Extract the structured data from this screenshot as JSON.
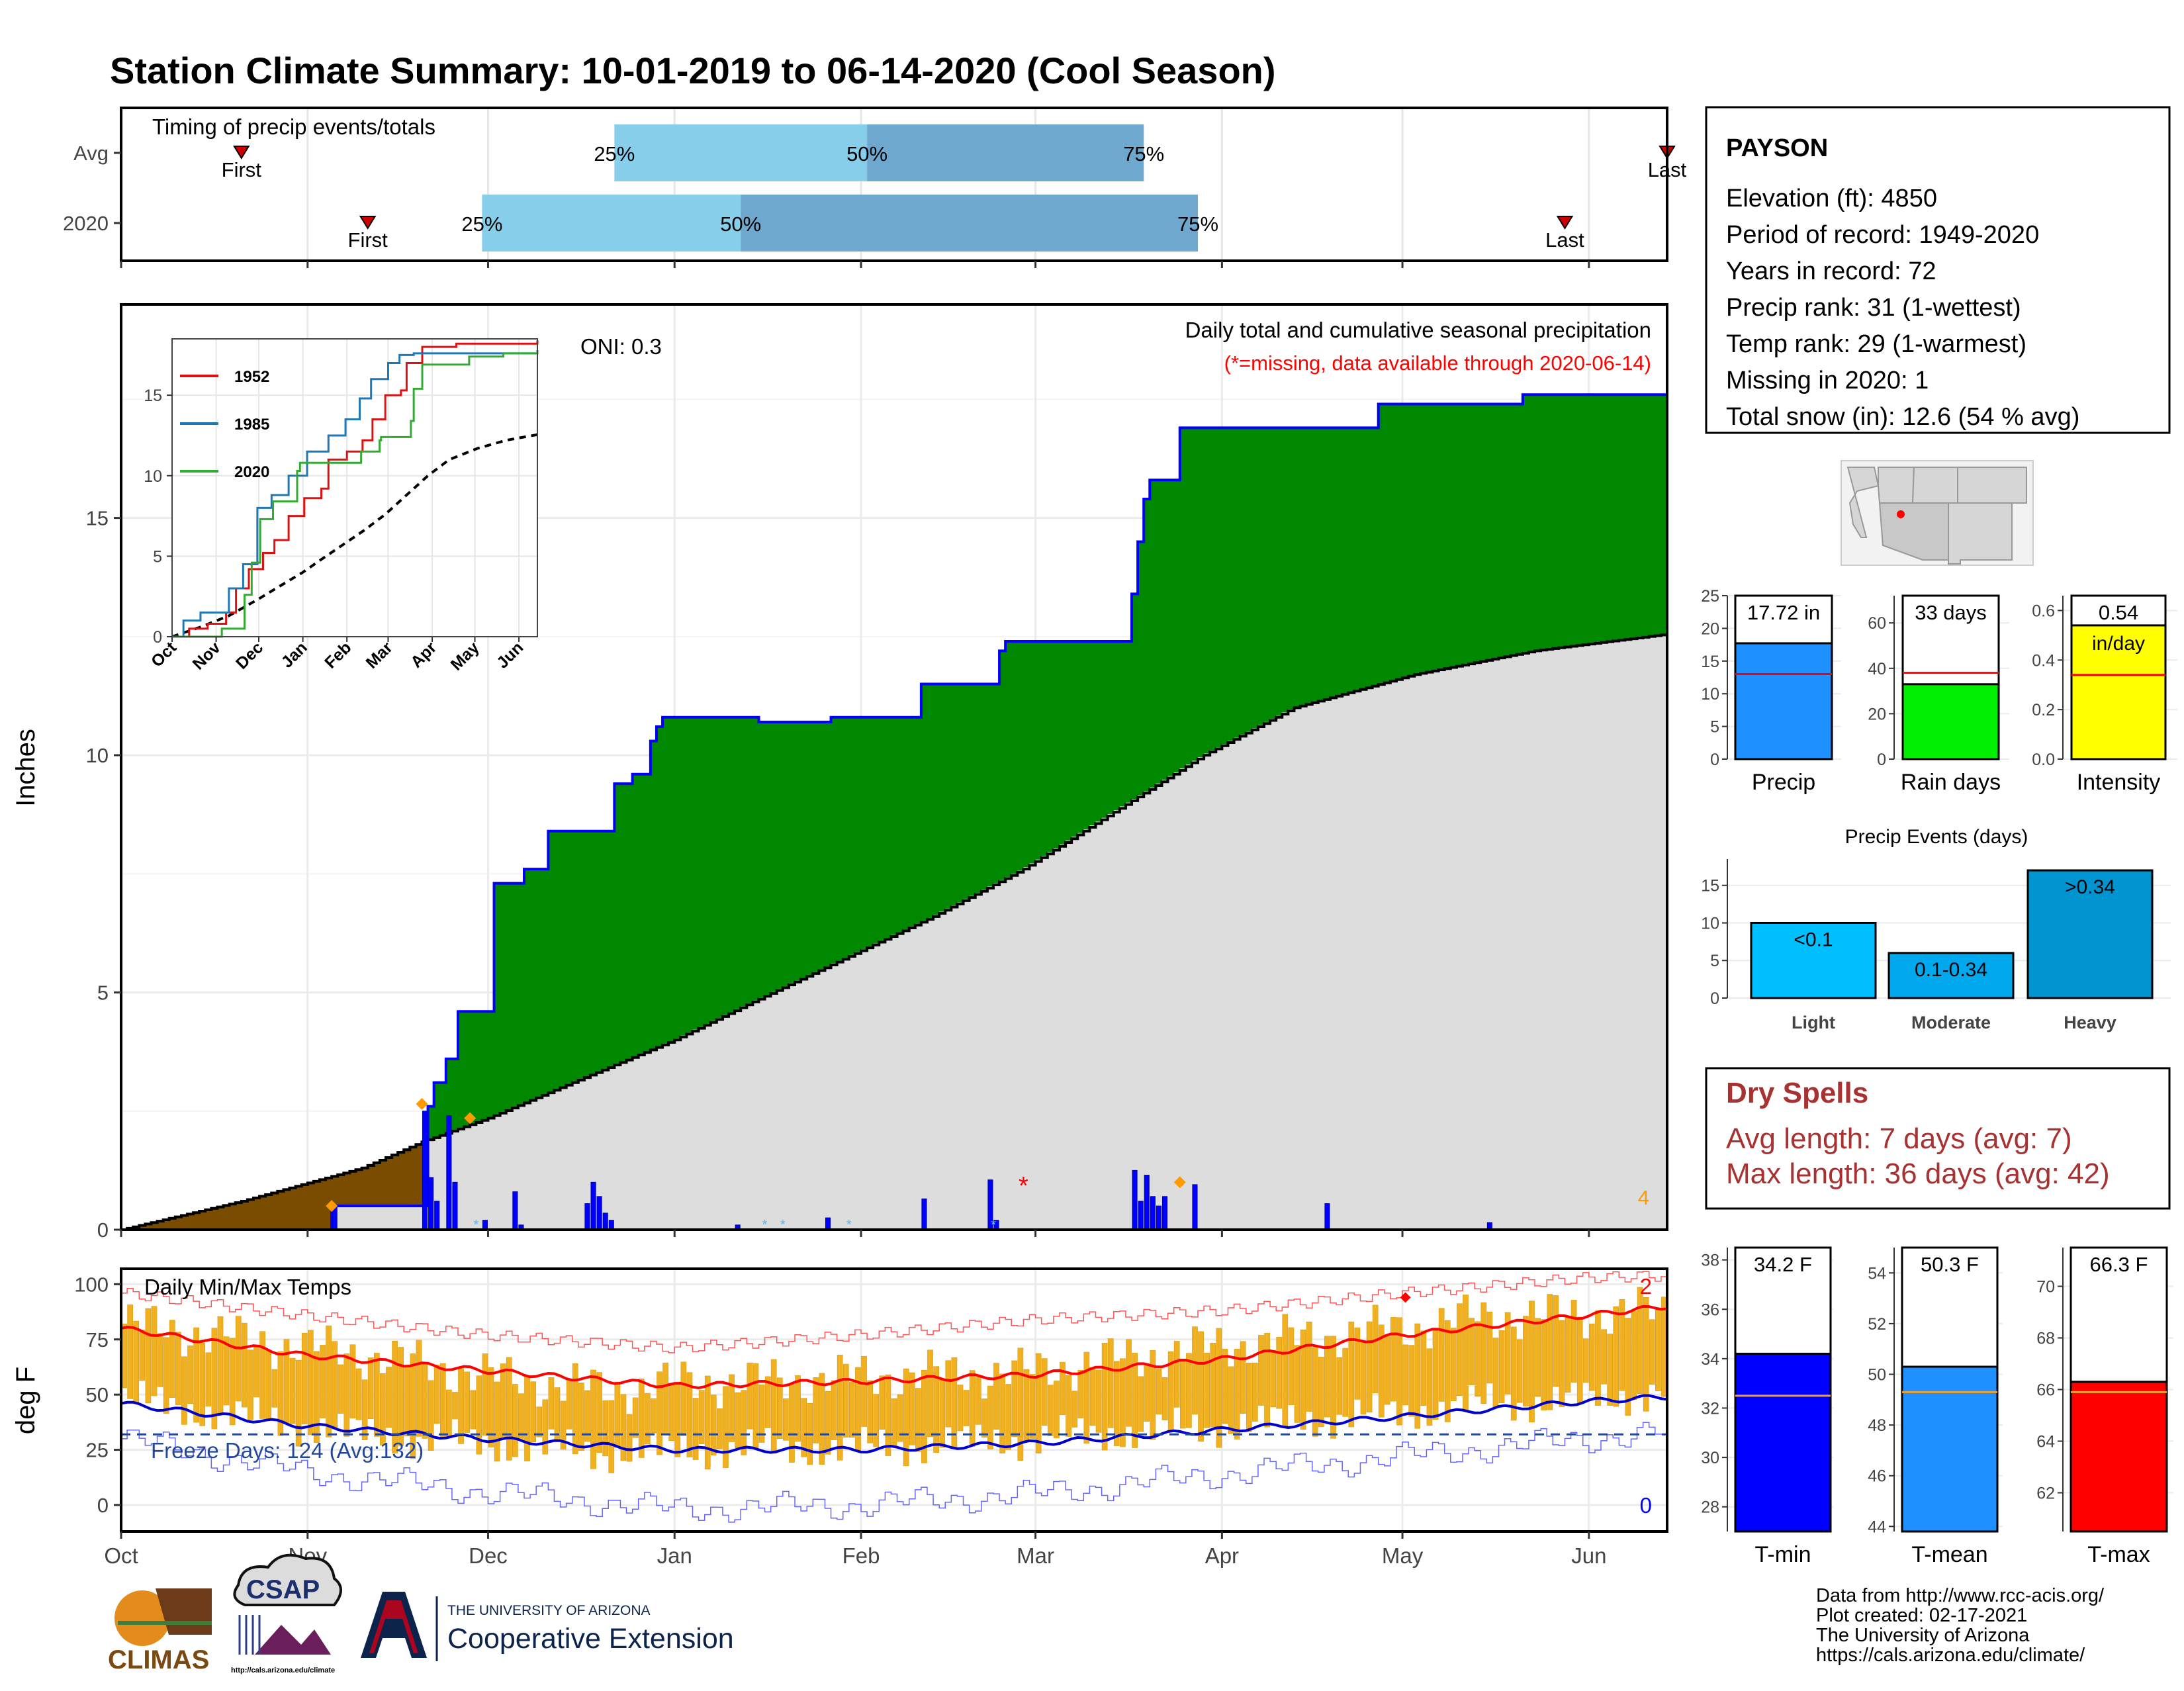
{
  "title": "Station Climate Summary: 10-01-2019 to 06-14-2020 (Cool Season)",
  "timing_panel": {
    "label": "Timing of precip events/totals",
    "rows": [
      {
        "name": "Avg",
        "first_label": "First",
        "last_label": "Last",
        "first_day": 20,
        "last_day": 257,
        "q25_day": 82,
        "q50_day": 124,
        "q75_day": 170,
        "q25_label": "25%",
        "q50_label": "50%",
        "q75_label": "75%"
      },
      {
        "name": "2020",
        "first_label": "First",
        "last_label": "Last",
        "first_day": 41,
        "last_day": 240,
        "q25_day": 60,
        "q50_day": 103,
        "q75_day": 179,
        "q25_label": "25%",
        "q50_label": "50%",
        "q75_label": "75%"
      }
    ]
  },
  "station": {
    "name": "PAYSON",
    "lines": [
      "Elevation (ft): 4850",
      "Period of record: 1949-2020",
      "Years in record: 72",
      "Precip rank: 31 (1-wettest)",
      "Temp rank: 29 (1-warmest)",
      "Missing in 2020: 1",
      "Total snow (in): 12.6 (54 % avg)"
    ]
  },
  "dry_spells": {
    "title": "Dry Spells",
    "lines": [
      "Avg length: 7 days (avg: 7)",
      "Max length: 36 days (avg: 42)"
    ]
  },
  "credits": [
    "Data from http://www.rcc-acis.org/",
    "Plot created: 02-17-2021",
    "The University of Arizona",
    "https://cals.arizona.edu/climate/"
  ],
  "logos": {
    "climas": "CLIMAS",
    "csap": "CSAP",
    "csap_url": "http://cals.arizona.edu/climate",
    "ua_line1": "THE UNIVERSITY OF ARIZONA",
    "ua_line2": "Cooperative Extension"
  },
  "colors": {
    "title": "#2b3f87",
    "green": "#008800",
    "brown": "#7a4c00",
    "gray": "#dddddd",
    "blue": "#0000ff",
    "orange": "#f0b020",
    "red": "#ff0000",
    "dry_red": "#a83232"
  },
  "chart_data": [
    {
      "id": "precip",
      "type": "area",
      "title": "Daily total and cumulative seasonal precipitation",
      "subtitle": "(*=missing, data available through 2020-06-14)",
      "oni_label": "ONI: 0.3",
      "ylabel": "Inches",
      "ylim": [
        0,
        19.5
      ],
      "yticks": [
        0,
        5,
        10,
        15
      ],
      "xlabels": [
        "Oct",
        "Nov",
        "Dec",
        "Jan",
        "Feb",
        "Mar",
        "Apr",
        "May",
        "Jun"
      ],
      "corner_label": "4",
      "observed_cumulative": [
        [
          0,
          0
        ],
        [
          35,
          0.5
        ],
        [
          50,
          0.5
        ],
        [
          51,
          2.6
        ],
        [
          52,
          3.1
        ],
        [
          54,
          3.6
        ],
        [
          56,
          4.6
        ],
        [
          61,
          4.6
        ],
        [
          62,
          7.3
        ],
        [
          66,
          7.3
        ],
        [
          67,
          7.6
        ],
        [
          70,
          7.6
        ],
        [
          71,
          8.4
        ],
        [
          75,
          8.4
        ],
        [
          81,
          8.4
        ],
        [
          82,
          9.4
        ],
        [
          85,
          9.6
        ],
        [
          88,
          10.3
        ],
        [
          89,
          10.6
        ],
        [
          90,
          10.8
        ],
        [
          100,
          10.8
        ],
        [
          105,
          10.8
        ],
        [
          106,
          10.7
        ],
        [
          117,
          10.7
        ],
        [
          118,
          10.8
        ],
        [
          132,
          10.8
        ],
        [
          133,
          11.5
        ],
        [
          145,
          11.5
        ],
        [
          146,
          12.2
        ],
        [
          147,
          12.4
        ],
        [
          167,
          12.4
        ],
        [
          168,
          13.4
        ],
        [
          169,
          14.5
        ],
        [
          170,
          15.4
        ],
        [
          171,
          15.8
        ],
        [
          175,
          15.8
        ],
        [
          176,
          16.9
        ],
        [
          196,
          16.9
        ],
        [
          208,
          16.9
        ],
        [
          209,
          17.4
        ],
        [
          232,
          17.4
        ],
        [
          233,
          17.6
        ],
        [
          256,
          17.6
        ],
        [
          257,
          17.72
        ]
      ],
      "avg_cumulative": [
        [
          0,
          0
        ],
        [
          20,
          0.6
        ],
        [
          40,
          1.3
        ],
        [
          50,
          1.85
        ],
        [
          61,
          2.35
        ],
        [
          75,
          3.1
        ],
        [
          92,
          4.0
        ],
        [
          105,
          4.8
        ],
        [
          120,
          5.7
        ],
        [
          135,
          6.6
        ],
        [
          150,
          7.6
        ],
        [
          165,
          8.8
        ],
        [
          180,
          10.0
        ],
        [
          195,
          11.0
        ],
        [
          215,
          11.7
        ],
        [
          235,
          12.2
        ],
        [
          257,
          12.55
        ]
      ],
      "daily_bars": [
        [
          35,
          0.5
        ],
        [
          50,
          2.5
        ],
        [
          51,
          1.1
        ],
        [
          52,
          0.6
        ],
        [
          54,
          2.4
        ],
        [
          55,
          1.0
        ],
        [
          60,
          0.2
        ],
        [
          65,
          0.8
        ],
        [
          66,
          0.1
        ],
        [
          77,
          0.55
        ],
        [
          78,
          1.0
        ],
        [
          79,
          0.7
        ],
        [
          80,
          0.35
        ],
        [
          81,
          0.2
        ],
        [
          102,
          0.1
        ],
        [
          117,
          0.25
        ],
        [
          133,
          0.65
        ],
        [
          144,
          1.05
        ],
        [
          145,
          0.2
        ],
        [
          168,
          1.25
        ],
        [
          169,
          0.6
        ],
        [
          170,
          1.15
        ],
        [
          171,
          0.7
        ],
        [
          172,
          0.5
        ],
        [
          173,
          0.7
        ],
        [
          178,
          0.95
        ],
        [
          200,
          0.55
        ],
        [
          227,
          0.15
        ]
      ],
      "diamonds": [
        [
          35,
          0.5
        ],
        [
          50,
          2.65
        ],
        [
          58,
          2.35
        ],
        [
          176,
          1.0
        ]
      ],
      "missing_marks": [
        [
          150,
          0.95
        ]
      ]
    },
    {
      "id": "inset",
      "type": "line",
      "xlabels": [
        "Oct",
        "Nov",
        "Dec",
        "Jan",
        "Feb",
        "Mar",
        "Apr",
        "May",
        "Jun"
      ],
      "ylim": [
        0,
        18.5
      ],
      "yticks": [
        0,
        5,
        10,
        15
      ],
      "series": [
        {
          "name": "1952",
          "color": "#dd1111",
          "points": [
            [
              0,
              0
            ],
            [
              12,
              0.5
            ],
            [
              25,
              0.8
            ],
            [
              38,
              1.5
            ],
            [
              45,
              3.0
            ],
            [
              54,
              4.2
            ],
            [
              64,
              5.2
            ],
            [
              72,
              6.0
            ],
            [
              82,
              7.5
            ],
            [
              93,
              8.6
            ],
            [
              105,
              9.2
            ],
            [
              110,
              11.0
            ],
            [
              123,
              11.5
            ],
            [
              134,
              12.2
            ],
            [
              141,
              13.5
            ],
            [
              150,
              15.0
            ],
            [
              161,
              15.3
            ],
            [
              165,
              17.0
            ],
            [
              176,
              18.0
            ],
            [
              200,
              18.2
            ],
            [
              257,
              18.4
            ]
          ]
        },
        {
          "name": "1985",
          "color": "#1f77b4",
          "points": [
            [
              0,
              0
            ],
            [
              8,
              1.0
            ],
            [
              20,
              1.5
            ],
            [
              40,
              3.0
            ],
            [
              50,
              4.5
            ],
            [
              60,
              8.0
            ],
            [
              70,
              8.8
            ],
            [
              82,
              10.0
            ],
            [
              95,
              11.5
            ],
            [
              110,
              12.5
            ],
            [
              122,
              13.5
            ],
            [
              132,
              14.8
            ],
            [
              140,
              16.0
            ],
            [
              152,
              17.0
            ],
            [
              160,
              17.5
            ],
            [
              170,
              17.6
            ],
            [
              190,
              17.6
            ],
            [
              257,
              17.8
            ]
          ]
        },
        {
          "name": "2020",
          "color": "#33aa33",
          "points": [
            [
              0,
              0
            ],
            [
              35,
              0.5
            ],
            [
              51,
              2.6
            ],
            [
              56,
              4.6
            ],
            [
              62,
              7.3
            ],
            [
              71,
              8.4
            ],
            [
              88,
              10.3
            ],
            [
              90,
              10.8
            ],
            [
              132,
              10.8
            ],
            [
              133,
              11.5
            ],
            [
              146,
              12.2
            ],
            [
              147,
              12.4
            ],
            [
              168,
              13.4
            ],
            [
              170,
              15.4
            ],
            [
              176,
              16.9
            ],
            [
              208,
              16.9
            ],
            [
              209,
              17.4
            ],
            [
              233,
              17.6
            ],
            [
              257,
              17.72
            ]
          ]
        }
      ],
      "avg_series": {
        "color": "#000000",
        "points": [
          [
            0,
            0
          ],
          [
            20,
            0.6
          ],
          [
            40,
            1.3
          ],
          [
            61,
            2.35
          ],
          [
            75,
            3.1
          ],
          [
            92,
            4.0
          ],
          [
            105,
            4.8
          ],
          [
            120,
            5.7
          ],
          [
            135,
            6.6
          ],
          [
            150,
            7.6
          ],
          [
            165,
            8.8
          ],
          [
            180,
            10.0
          ],
          [
            195,
            11.0
          ],
          [
            215,
            11.7
          ],
          [
            235,
            12.2
          ],
          [
            257,
            12.55
          ]
        ]
      }
    },
    {
      "id": "temps",
      "type": "bar",
      "title": "Daily Min/Max Temps",
      "ylabel": "deg F",
      "ylim": [
        -12,
        107
      ],
      "yticks": [
        0,
        25,
        50,
        75,
        100
      ],
      "xlabels": [
        "Oct",
        "Nov",
        "Dec",
        "Jan",
        "Feb",
        "Mar",
        "Apr",
        "May",
        "Jun"
      ],
      "freeze_label": "Freeze Days: 124 (Avg:132)",
      "freeze_line": 32,
      "count_top": "2",
      "count_bottom": "0",
      "avg_max": [
        [
          0,
          80
        ],
        [
          30,
          68
        ],
        [
          60,
          61
        ],
        [
          92,
          54
        ],
        [
          123,
          56
        ],
        [
          152,
          59
        ],
        [
          183,
          66
        ],
        [
          213,
          77
        ],
        [
          244,
          86
        ],
        [
          257,
          90
        ]
      ],
      "avg_min": [
        [
          0,
          46
        ],
        [
          30,
          36
        ],
        [
          60,
          30
        ],
        [
          92,
          25
        ],
        [
          123,
          25
        ],
        [
          152,
          28
        ],
        [
          183,
          34
        ],
        [
          213,
          40
        ],
        [
          244,
          47
        ],
        [
          257,
          49
        ]
      ],
      "record_max": [
        [
          0,
          96
        ],
        [
          30,
          86
        ],
        [
          60,
          77
        ],
        [
          92,
          71
        ],
        [
          123,
          77
        ],
        [
          152,
          84
        ],
        [
          183,
          88
        ],
        [
          213,
          96
        ],
        [
          244,
          103
        ],
        [
          257,
          104
        ]
      ],
      "record_min": [
        [
          0,
          30
        ],
        [
          30,
          15
        ],
        [
          60,
          6
        ],
        [
          92,
          -2
        ],
        [
          123,
          0
        ],
        [
          152,
          5
        ],
        [
          183,
          14
        ],
        [
          213,
          22
        ],
        [
          244,
          30
        ],
        [
          257,
          33
        ]
      ],
      "daily_anchor_max": [
        [
          0,
          82
        ],
        [
          20,
          75
        ],
        [
          40,
          68
        ],
        [
          61,
          58
        ],
        [
          80,
          52
        ],
        [
          92,
          55
        ],
        [
          110,
          56
        ],
        [
          123,
          58
        ],
        [
          150,
          60
        ],
        [
          160,
          64
        ],
        [
          183,
          72
        ],
        [
          213,
          80
        ],
        [
          225,
          85
        ],
        [
          244,
          86
        ],
        [
          257,
          88
        ]
      ],
      "daily_anchor_min": [
        [
          0,
          48
        ],
        [
          20,
          40
        ],
        [
          40,
          32
        ],
        [
          61,
          28
        ],
        [
          80,
          24
        ],
        [
          92,
          25
        ],
        [
          110,
          26
        ],
        [
          123,
          26
        ],
        [
          150,
          30
        ],
        [
          160,
          32
        ],
        [
          183,
          36
        ],
        [
          213,
          42
        ],
        [
          225,
          46
        ],
        [
          244,
          48
        ],
        [
          257,
          52
        ]
      ]
    },
    {
      "id": "stats",
      "type": "bar",
      "bars": [
        {
          "label": "Precip",
          "value": 17.72,
          "text": "17.72 in",
          "avg": 13,
          "ylim": [
            0,
            25
          ],
          "yticks": [
            0,
            5,
            10,
            15,
            20,
            25
          ],
          "color": "#1e90ff"
        },
        {
          "label": "Rain days",
          "value": 33,
          "text": "33 days",
          "avg": 38,
          "ylim": [
            0,
            72
          ],
          "yticks": [
            0,
            20,
            40,
            60
          ],
          "color": "#00ee00"
        },
        {
          "label": "Intensity",
          "value": 0.54,
          "text": "0.54",
          "unit": "in/day",
          "avg": 0.34,
          "ylim": [
            0,
            0.66
          ],
          "yticks": [
            0.0,
            0.2,
            0.4,
            0.6
          ],
          "color": "#ffff00"
        }
      ]
    },
    {
      "id": "events",
      "type": "bar",
      "title": "Precip Events (days)",
      "categories": [
        "Light",
        "Moderate",
        "Heavy"
      ],
      "values": [
        10,
        6,
        17
      ],
      "texts": [
        "<0.1",
        "0.1-0.34",
        ">0.34"
      ],
      "colors": [
        "#00bfff",
        "#00a8ee",
        "#0095d0"
      ],
      "ylim": [
        0,
        18.5
      ],
      "yticks": [
        0,
        5,
        10,
        15
      ]
    },
    {
      "id": "tstats",
      "type": "bar",
      "bars": [
        {
          "label": "T-min",
          "value": 34.2,
          "text": "34.2 F",
          "avg": 32.5,
          "ylim": [
            27,
            38.5
          ],
          "yticks": [
            28,
            30,
            32,
            34,
            36,
            38
          ],
          "color": "#0000ff"
        },
        {
          "label": "T-mean",
          "value": 50.3,
          "text": "50.3 F",
          "avg": 49.3,
          "ylim": [
            43.8,
            55
          ],
          "yticks": [
            44,
            46,
            48,
            50,
            52,
            54
          ],
          "color": "#1e90ff"
        },
        {
          "label": "T-max",
          "value": 66.3,
          "text": "66.3 F",
          "avg": 65.9,
          "ylim": [
            60.5,
            71.5
          ],
          "yticks": [
            62,
            64,
            66,
            68,
            70
          ],
          "color": "#ff0000"
        }
      ]
    }
  ]
}
